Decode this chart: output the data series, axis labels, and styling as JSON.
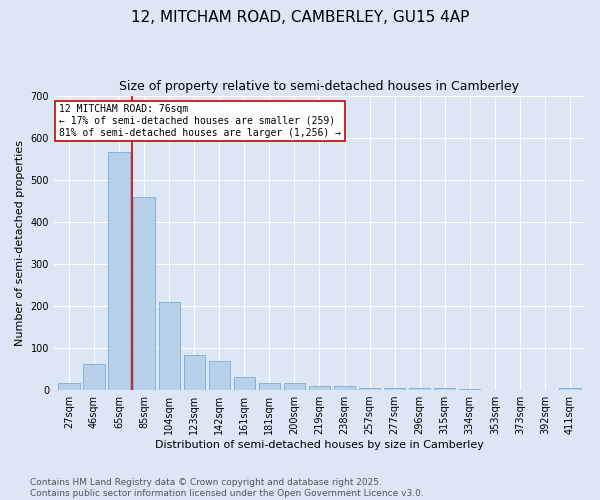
{
  "title1": "12, MITCHAM ROAD, CAMBERLEY, GU15 4AP",
  "title2": "Size of property relative to semi-detached houses in Camberley",
  "xlabel": "Distribution of semi-detached houses by size in Camberley",
  "ylabel": "Number of semi-detached properties",
  "categories": [
    "27sqm",
    "46sqm",
    "65sqm",
    "85sqm",
    "104sqm",
    "123sqm",
    "142sqm",
    "161sqm",
    "181sqm",
    "200sqm",
    "219sqm",
    "238sqm",
    "257sqm",
    "277sqm",
    "296sqm",
    "315sqm",
    "334sqm",
    "353sqm",
    "373sqm",
    "392sqm",
    "411sqm"
  ],
  "values": [
    18,
    62,
    565,
    460,
    210,
    84,
    70,
    31,
    18,
    17,
    10,
    10,
    5,
    5,
    6,
    5,
    3,
    0,
    0,
    1,
    5
  ],
  "bar_color": "#b8d0ea",
  "bar_edge_color": "#7aaed4",
  "vline_x": 2.5,
  "vline_color": "#cc0000",
  "annotation_text": "12 MITCHAM ROAD: 76sqm\n← 17% of semi-detached houses are smaller (259)\n81% of semi-detached houses are larger (1,256) →",
  "annotation_box_color": "#ffffff",
  "annotation_edge_color": "#cc0000",
  "ylim": [
    0,
    700
  ],
  "yticks": [
    0,
    100,
    200,
    300,
    400,
    500,
    600,
    700
  ],
  "bg_color": "#dce6f5",
  "plot_bg_color": "#dce6f5",
  "footer_text": "Contains HM Land Registry data © Crown copyright and database right 2025.\nContains public sector information licensed under the Open Government Licence v3.0.",
  "title1_fontsize": 11,
  "title2_fontsize": 9,
  "xlabel_fontsize": 8,
  "ylabel_fontsize": 8,
  "footer_fontsize": 6.5,
  "tick_fontsize": 7,
  "annot_fontsize": 7
}
